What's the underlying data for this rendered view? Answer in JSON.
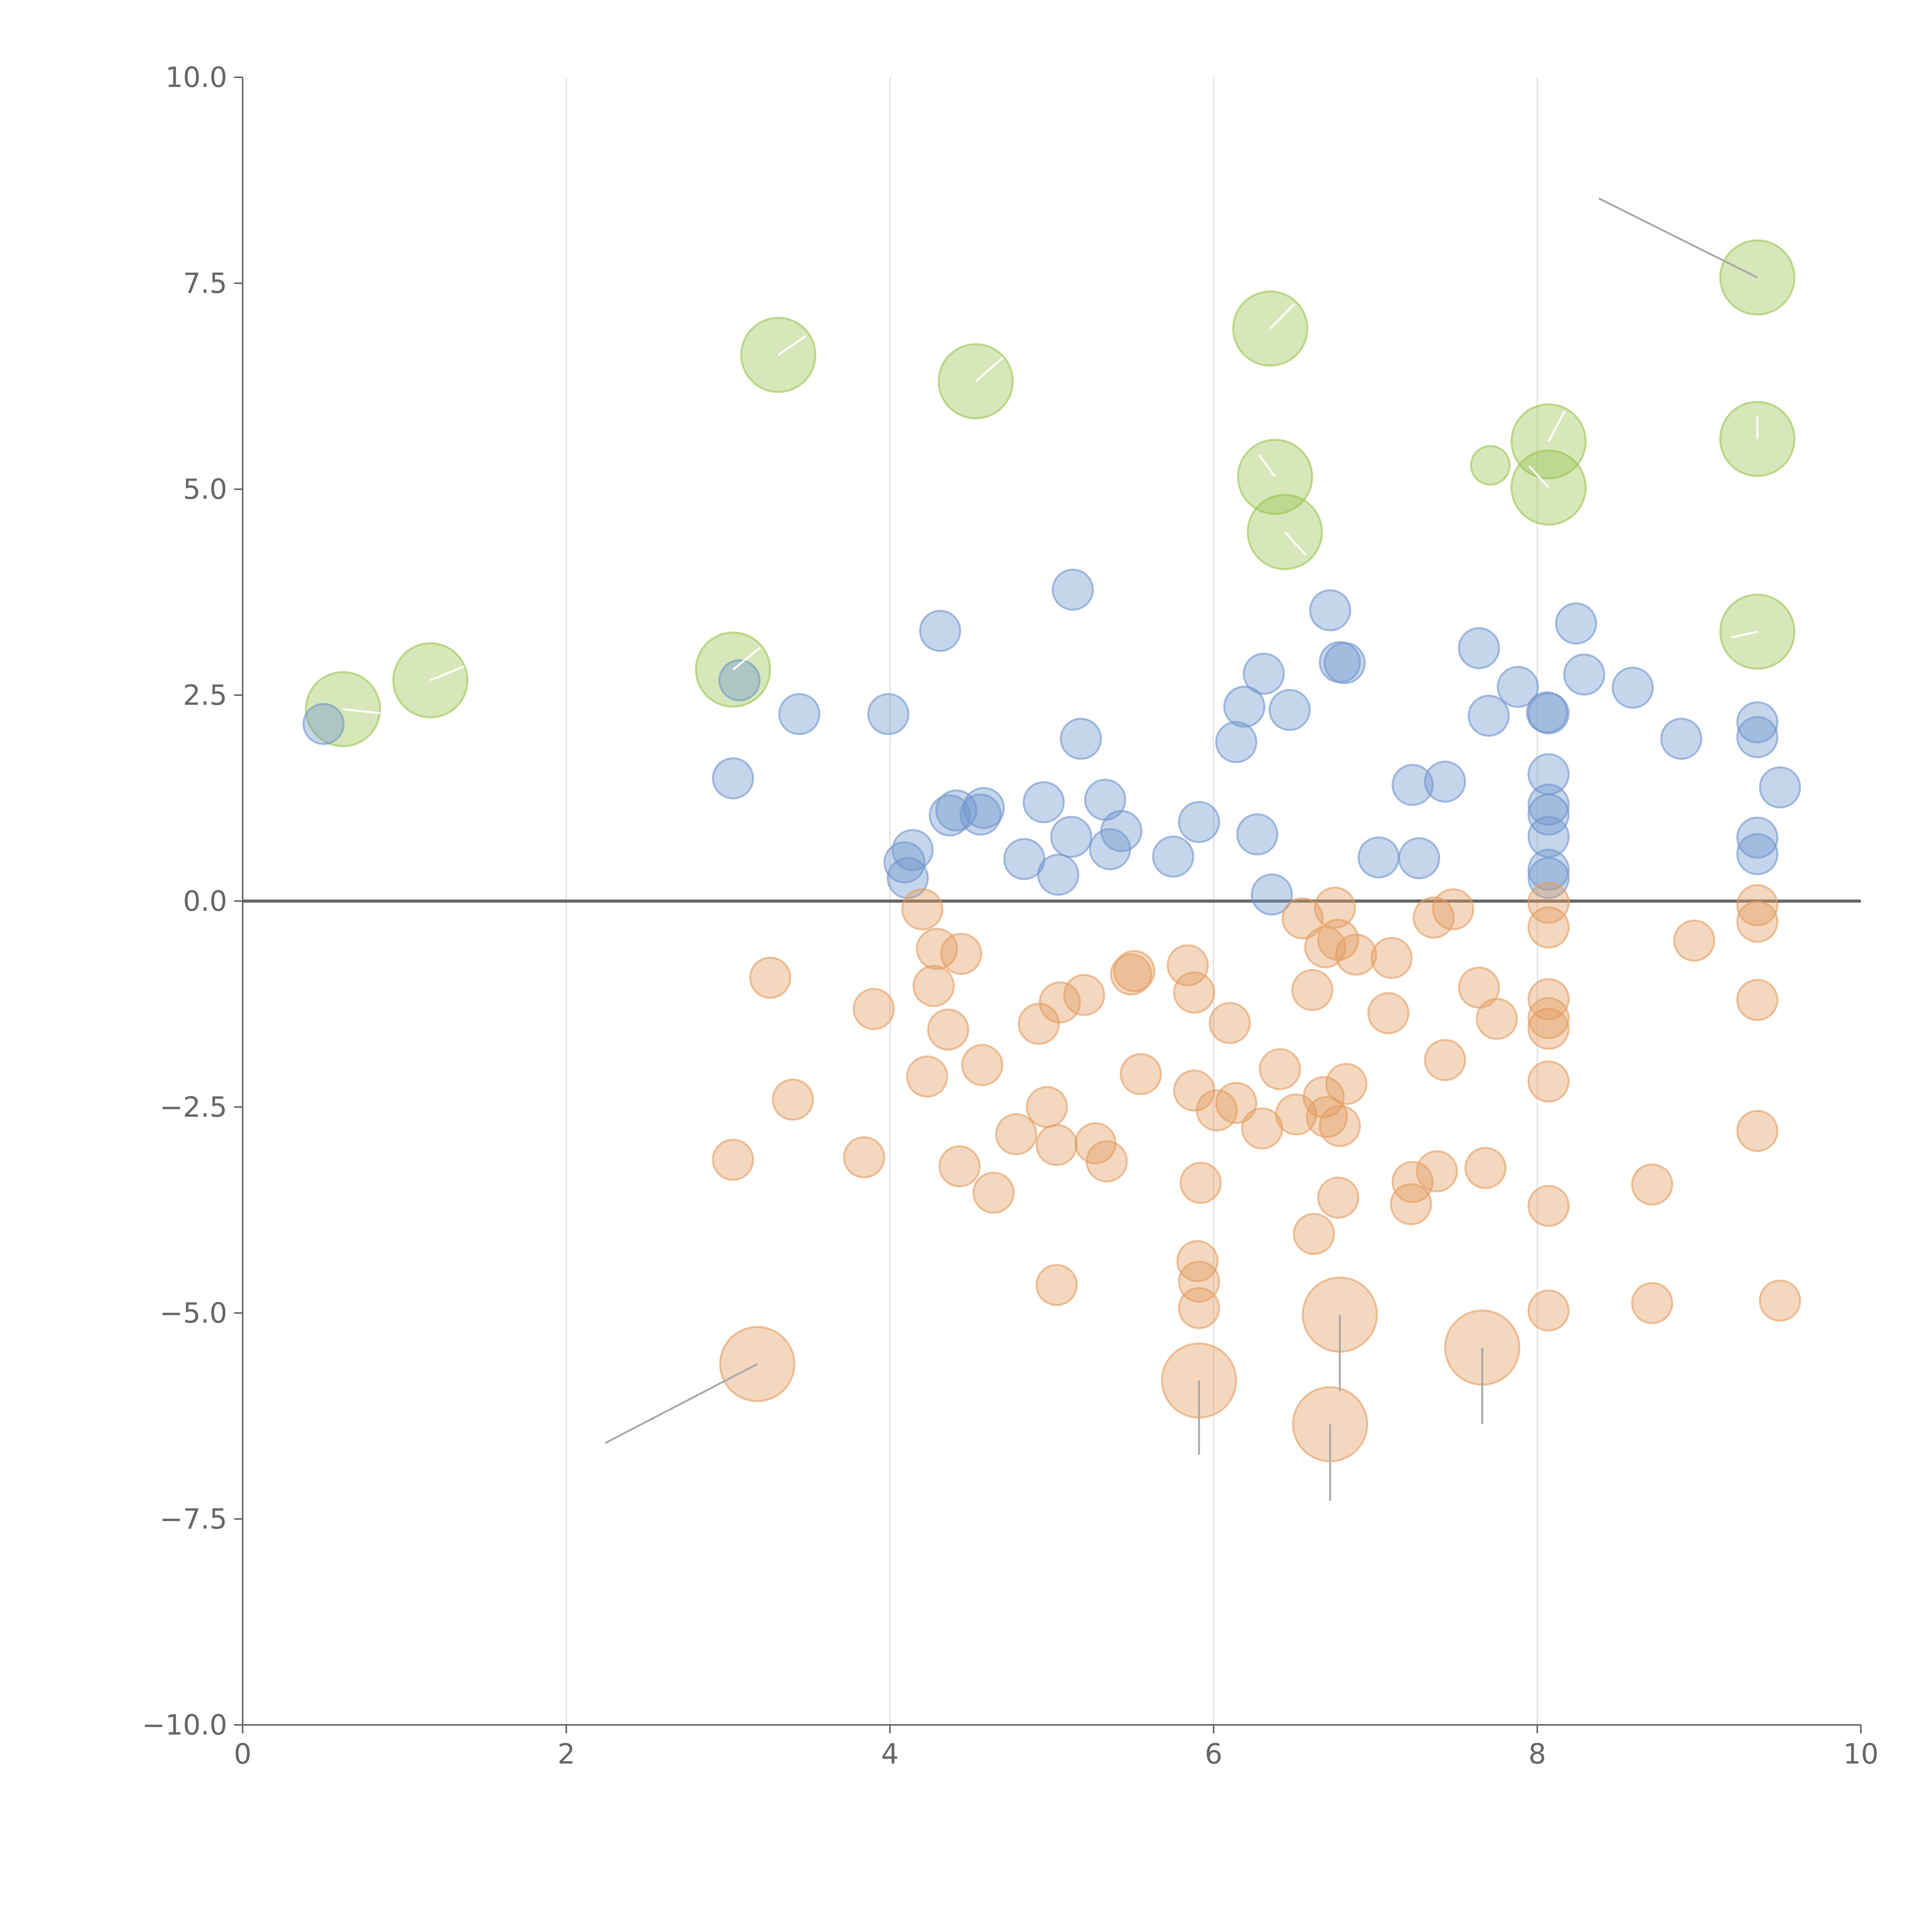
{
  "chart_data": {
    "type": "scatter",
    "title": "",
    "xlabel": "",
    "ylabel": "",
    "xlim": [
      0,
      10
    ],
    "ylim": [
      -10,
      10
    ],
    "grid": "vertical",
    "x_ticks": [
      0,
      2,
      4,
      6,
      8,
      10
    ],
    "x_tick_labels": [
      "0",
      "2",
      "4",
      "6",
      "8",
      "10"
    ],
    "y_ticks": [
      -10,
      -7.5,
      -5,
      -2.5,
      0,
      2.5,
      5,
      7.5,
      10
    ],
    "y_tick_labels": [
      "−10.0",
      "−7.5",
      "−5.0",
      "−2.5",
      "0.0",
      "2.5",
      "5.0",
      "7.5",
      "10.0"
    ],
    "series": [
      {
        "name": "green",
        "color": "#9bc34f",
        "size_level": "large",
        "points": [
          {
            "x": 0.62,
            "y": 2.33
          },
          {
            "x": 1.16,
            "y": 2.68
          },
          {
            "x": 3.03,
            "y": 2.81
          },
          {
            "x": 3.31,
            "y": 6.63
          },
          {
            "x": 4.53,
            "y": 6.31
          },
          {
            "x": 6.35,
            "y": 6.95
          },
          {
            "x": 6.38,
            "y": 5.15
          },
          {
            "x": 6.44,
            "y": 4.48
          },
          {
            "x": 7.71,
            "y": 5.29,
            "small": true
          },
          {
            "x": 8.07,
            "y": 5.58
          },
          {
            "x": 8.07,
            "y": 5.02
          },
          {
            "x": 9.36,
            "y": 7.57
          },
          {
            "x": 9.36,
            "y": 5.61
          },
          {
            "x": 9.36,
            "y": 3.27
          }
        ]
      },
      {
        "name": "blue",
        "color": "#6f95cc",
        "size_level": "medium",
        "points": [
          {
            "x": 0.5,
            "y": 2.15
          },
          {
            "x": 3.07,
            "y": 2.68
          },
          {
            "x": 3.03,
            "y": 1.49
          },
          {
            "x": 3.44,
            "y": 2.27
          },
          {
            "x": 3.99,
            "y": 2.27
          },
          {
            "x": 4.31,
            "y": 3.28
          },
          {
            "x": 5.13,
            "y": 3.78
          },
          {
            "x": 4.09,
            "y": 0.47
          },
          {
            "x": 4.11,
            "y": 0.28
          },
          {
            "x": 4.14,
            "y": 0.62
          },
          {
            "x": 4.37,
            "y": 1.04
          },
          {
            "x": 4.41,
            "y": 1.1
          },
          {
            "x": 4.56,
            "y": 1.05
          },
          {
            "x": 4.58,
            "y": 1.13
          },
          {
            "x": 4.83,
            "y": 0.51
          },
          {
            "x": 4.95,
            "y": 1.2
          },
          {
            "x": 5.04,
            "y": 0.32
          },
          {
            "x": 5.12,
            "y": 0.78
          },
          {
            "x": 5.18,
            "y": 1.97
          },
          {
            "x": 5.33,
            "y": 1.23
          },
          {
            "x": 5.36,
            "y": 0.63
          },
          {
            "x": 5.43,
            "y": 0.85
          },
          {
            "x": 5.75,
            "y": 0.54
          },
          {
            "x": 5.91,
            "y": 0.96
          },
          {
            "x": 6.14,
            "y": 1.93
          },
          {
            "x": 6.19,
            "y": 2.36
          },
          {
            "x": 6.27,
            "y": 0.81
          },
          {
            "x": 6.31,
            "y": 2.76
          },
          {
            "x": 6.36,
            "y": 0.08
          },
          {
            "x": 6.47,
            "y": 2.32
          },
          {
            "x": 6.72,
            "y": 3.53
          },
          {
            "x": 6.78,
            "y": 2.9
          },
          {
            "x": 6.81,
            "y": 2.89
          },
          {
            "x": 7.02,
            "y": 0.53
          },
          {
            "x": 7.23,
            "y": 1.41
          },
          {
            "x": 7.27,
            "y": 0.52
          },
          {
            "x": 7.43,
            "y": 1.45
          },
          {
            "x": 7.64,
            "y": 3.07
          },
          {
            "x": 7.7,
            "y": 2.25
          },
          {
            "x": 7.88,
            "y": 2.6
          },
          {
            "x": 8.06,
            "y": 2.29
          },
          {
            "x": 8.07,
            "y": 2.28
          },
          {
            "x": 8.07,
            "y": 1.54
          },
          {
            "x": 8.07,
            "y": 1.17
          },
          {
            "x": 8.07,
            "y": 1.05
          },
          {
            "x": 8.07,
            "y": 0.78
          },
          {
            "x": 8.07,
            "y": 0.38
          },
          {
            "x": 8.07,
            "y": 0.28
          },
          {
            "x": 8.24,
            "y": 3.37
          },
          {
            "x": 8.29,
            "y": 2.75
          },
          {
            "x": 8.59,
            "y": 2.59
          },
          {
            "x": 8.89,
            "y": 1.97
          },
          {
            "x": 9.36,
            "y": 2.17
          },
          {
            "x": 9.36,
            "y": 1.99
          },
          {
            "x": 9.36,
            "y": 0.77
          },
          {
            "x": 9.36,
            "y": 0.57
          },
          {
            "x": 9.5,
            "y": 1.38
          }
        ]
      },
      {
        "name": "orange",
        "color": "#e39c5f",
        "size_level": "medium",
        "points": [
          {
            "x": 3.18,
            "y": -5.62,
            "large": true
          },
          {
            "x": 3.26,
            "y": -0.93
          },
          {
            "x": 3.03,
            "y": -3.14
          },
          {
            "x": 3.4,
            "y": -2.41
          },
          {
            "x": 3.84,
            "y": -3.11
          },
          {
            "x": 3.9,
            "y": -1.31
          },
          {
            "x": 4.2,
            "y": -0.1
          },
          {
            "x": 4.23,
            "y": -2.13
          },
          {
            "x": 4.27,
            "y": -1.03
          },
          {
            "x": 4.29,
            "y": -0.58
          },
          {
            "x": 4.36,
            "y": -1.56
          },
          {
            "x": 4.43,
            "y": -3.22
          },
          {
            "x": 4.44,
            "y": -0.64
          },
          {
            "x": 4.57,
            "y": -1.99
          },
          {
            "x": 4.64,
            "y": -3.54
          },
          {
            "x": 4.78,
            "y": -2.83
          },
          {
            "x": 4.92,
            "y": -1.49
          },
          {
            "x": 4.97,
            "y": -2.5
          },
          {
            "x": 5.03,
            "y": -2.96
          },
          {
            "x": 5.03,
            "y": -4.66
          },
          {
            "x": 5.05,
            "y": -1.23
          },
          {
            "x": 5.2,
            "y": -1.14
          },
          {
            "x": 5.27,
            "y": -2.94
          },
          {
            "x": 5.34,
            "y": -3.16
          },
          {
            "x": 5.49,
            "y": -0.89
          },
          {
            "x": 5.51,
            "y": -0.85
          },
          {
            "x": 5.55,
            "y": -2.1
          },
          {
            "x": 5.84,
            "y": -0.78
          },
          {
            "x": 5.88,
            "y": -1.11
          },
          {
            "x": 5.88,
            "y": -2.3
          },
          {
            "x": 5.92,
            "y": -3.42
          },
          {
            "x": 5.9,
            "y": -4.37
          },
          {
            "x": 5.91,
            "y": -4.62
          },
          {
            "x": 5.91,
            "y": -4.94
          },
          {
            "x": 5.91,
            "y": -5.82,
            "large": true
          },
          {
            "x": 6.02,
            "y": -2.54
          },
          {
            "x": 6.1,
            "y": -1.48
          },
          {
            "x": 6.14,
            "y": -2.45
          },
          {
            "x": 6.3,
            "y": -2.76
          },
          {
            "x": 6.41,
            "y": -2.04
          },
          {
            "x": 6.51,
            "y": -2.59
          },
          {
            "x": 6.55,
            "y": -0.21
          },
          {
            "x": 6.61,
            "y": -1.08
          },
          {
            "x": 6.62,
            "y": -4.04
          },
          {
            "x": 6.68,
            "y": -2.38
          },
          {
            "x": 6.69,
            "y": -0.56
          },
          {
            "x": 6.7,
            "y": -2.62
          },
          {
            "x": 6.75,
            "y": -0.08
          },
          {
            "x": 6.77,
            "y": -0.47
          },
          {
            "x": 6.77,
            "y": -3.6
          },
          {
            "x": 6.78,
            "y": -2.73
          },
          {
            "x": 6.78,
            "y": -5.02,
            "large": true
          },
          {
            "x": 6.72,
            "y": -6.35,
            "large": true
          },
          {
            "x": 6.82,
            "y": -2.22
          },
          {
            "x": 6.88,
            "y": -0.65
          },
          {
            "x": 7.08,
            "y": -1.36
          },
          {
            "x": 7.1,
            "y": -0.69
          },
          {
            "x": 7.22,
            "y": -3.68
          },
          {
            "x": 7.23,
            "y": -3.41
          },
          {
            "x": 7.36,
            "y": -0.2
          },
          {
            "x": 7.38,
            "y": -3.28
          },
          {
            "x": 7.43,
            "y": -1.93
          },
          {
            "x": 7.48,
            "y": -0.1
          },
          {
            "x": 7.64,
            "y": -1.05
          },
          {
            "x": 7.66,
            "y": -5.42,
            "large": true
          },
          {
            "x": 7.68,
            "y": -3.24
          },
          {
            "x": 7.75,
            "y": -1.43
          },
          {
            "x": 8.07,
            "y": -0.02
          },
          {
            "x": 8.07,
            "y": -0.32
          },
          {
            "x": 8.07,
            "y": -1.19
          },
          {
            "x": 8.07,
            "y": -1.42
          },
          {
            "x": 8.07,
            "y": -1.55
          },
          {
            "x": 8.07,
            "y": -2.19
          },
          {
            "x": 8.07,
            "y": -3.7
          },
          {
            "x": 8.07,
            "y": -4.97
          },
          {
            "x": 8.71,
            "y": -3.44
          },
          {
            "x": 8.71,
            "y": -4.88
          },
          {
            "x": 8.97,
            "y": -0.48
          },
          {
            "x": 9.36,
            "y": -0.05
          },
          {
            "x": 9.36,
            "y": -0.25
          },
          {
            "x": 9.36,
            "y": -1.2
          },
          {
            "x": 9.36,
            "y": -2.79
          },
          {
            "x": 9.5,
            "y": -4.85
          }
        ]
      }
    ],
    "leader_lines": [
      {
        "from": [
          9.36,
          7.57
        ],
        "to": [
          8.38,
          8.53
        ],
        "color": "#aaaaaa"
      },
      {
        "from": [
          3.18,
          -5.62
        ],
        "to": [
          2.24,
          -6.58
        ],
        "color": "#aaaaaa"
      },
      {
        "from": [
          5.91,
          -5.82
        ],
        "to": [
          5.91,
          -6.72
        ],
        "color": "#aaaaaa"
      },
      {
        "from": [
          6.72,
          -6.35
        ],
        "to": [
          6.72,
          -7.28
        ],
        "color": "#aaaaaa"
      },
      {
        "from": [
          6.78,
          -5.02
        ],
        "to": [
          6.78,
          -5.95
        ],
        "color": "#aaaaaa"
      },
      {
        "from": [
          7.66,
          -5.42
        ],
        "to": [
          7.66,
          -6.35
        ],
        "color": "#aaaaaa"
      },
      {
        "from": [
          0.62,
          2.33
        ],
        "to": [
          0.85,
          2.28
        ],
        "color": "#ffffff"
      },
      {
        "from": [
          1.16,
          2.68
        ],
        "to": [
          1.37,
          2.85
        ],
        "color": "#ffffff"
      },
      {
        "from": [
          3.03,
          2.81
        ],
        "to": [
          3.2,
          3.08
        ],
        "color": "#ffffff"
      },
      {
        "from": [
          3.31,
          6.63
        ],
        "to": [
          3.48,
          6.86
        ],
        "color": "#ffffff"
      },
      {
        "from": [
          4.53,
          6.31
        ],
        "to": [
          4.7,
          6.6
        ],
        "color": "#ffffff"
      },
      {
        "from": [
          6.35,
          6.95
        ],
        "to": [
          6.5,
          7.25
        ],
        "color": "#ffffff"
      },
      {
        "from": [
          6.38,
          5.15
        ],
        "to": [
          6.28,
          5.42
        ],
        "color": "#ffffff"
      },
      {
        "from": [
          6.44,
          4.48
        ],
        "to": [
          6.57,
          4.2
        ],
        "color": "#ffffff"
      },
      {
        "from": [
          8.07,
          5.58
        ],
        "to": [
          8.17,
          5.95
        ],
        "color": "#ffffff"
      },
      {
        "from": [
          8.07,
          5.02
        ],
        "to": [
          7.95,
          5.28
        ],
        "color": "#ffffff"
      },
      {
        "from": [
          9.36,
          5.61
        ],
        "to": [
          9.36,
          5.88
        ],
        "color": "#ffffff"
      },
      {
        "from": [
          9.36,
          3.27
        ],
        "to": [
          9.2,
          3.2
        ],
        "color": "#ffffff"
      }
    ]
  }
}
